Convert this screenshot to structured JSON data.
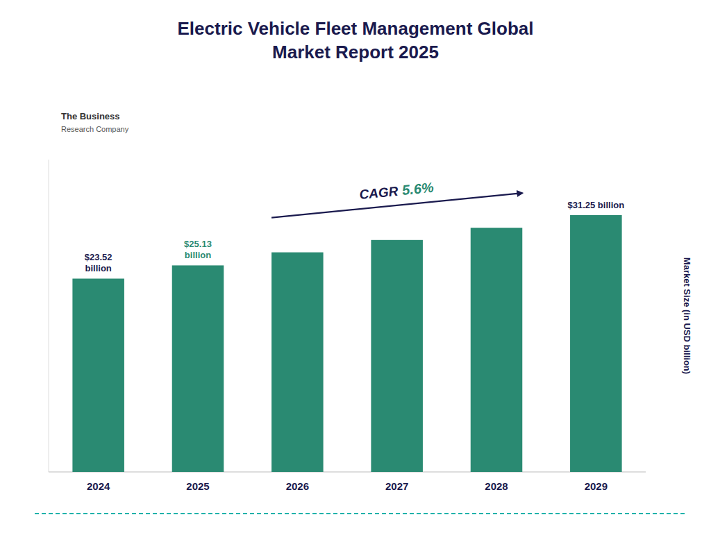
{
  "chart_data": {
    "type": "bar",
    "title": "Electric Vehicle Fleet Management Global\nMarket Report 2025",
    "y_label": "Market Size (in USD billion)",
    "categories": [
      "2024",
      "2025",
      "2026",
      "2027",
      "2028",
      "2029"
    ],
    "values": [
      23.52,
      25.13,
      26.72,
      28.22,
      29.71,
      31.25
    ],
    "color": "#2a8a72",
    "ylim": [
      0,
      38
    ],
    "grid": false,
    "tick_labels": "x",
    "annotations": [
      "$23.52\nbillion",
      "$25.13\nbillion",
      "$31.25 billion",
      "CAGR",
      "5.6%",
      "The Business",
      "Research Company"
    ]
  }
}
